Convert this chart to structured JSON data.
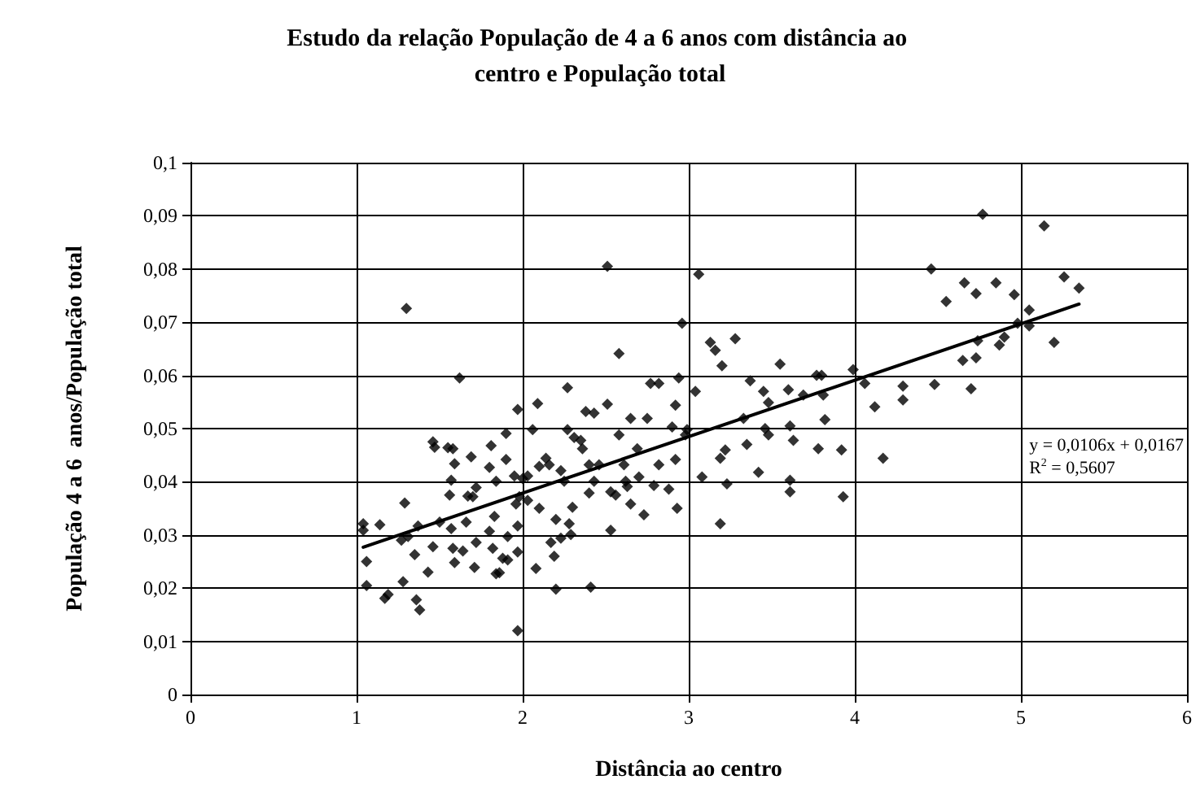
{
  "chart_data": {
    "type": "scatter",
    "title": "Estudo da relação População de 4 a 6 anos com distância ao centro e População total",
    "xlabel": "Distância ao centro",
    "ylabel": "População 4 a 6  anos/População total",
    "marker": "diamond",
    "grid": true,
    "xlim": [
      0,
      6
    ],
    "xticks": [
      0,
      1,
      2,
      3,
      4,
      5,
      6
    ],
    "ylim": [
      0,
      0.1
    ],
    "yticks": [
      0,
      {
        "value": 0.01,
        "label": "0,01"
      },
      {
        "value": 0.02,
        "label": "0,02"
      },
      {
        "value": 0.03,
        "label": "0,03"
      },
      {
        "value": 0.04,
        "label": "0,04"
      },
      {
        "value": 0.05,
        "label": "0,05"
      },
      {
        "value": 0.06,
        "label": "0,06"
      },
      {
        "value": 0.07,
        "label": "0,07"
      },
      {
        "value": 0.08,
        "label": "0,08"
      },
      {
        "value": 0.09,
        "label": "0,09"
      },
      {
        "value": 0.1,
        "label": "0,1"
      }
    ],
    "annotations": [
      "y = 0,0106x + 0,0167",
      "R$^{2}$ = 0,5607"
    ],
    "series": [
      {
        "color": "#000000",
        "x": [
          1.3,
          2.51,
          1.62,
          2.58,
          1.04,
          1.04,
          1.14,
          1.06,
          1.06,
          1.17,
          1.19,
          1.28,
          1.29,
          1.27,
          1.31,
          1.35,
          1.36,
          1.38,
          1.43,
          1.37,
          1.46,
          1.46,
          1.47,
          1.5,
          1.55,
          1.58,
          1.59,
          1.57,
          1.56,
          1.57,
          1.58,
          1.59,
          1.64,
          1.66,
          1.67,
          1.69,
          1.7,
          1.72,
          1.72,
          1.71,
          1.8,
          1.8,
          1.81,
          1.82,
          1.83,
          1.84,
          1.84,
          1.86,
          1.88,
          1.9,
          1.9,
          1.91,
          1.91,
          1.95,
          1.96,
          1.97,
          1.97,
          1.97,
          1.97,
          1.98,
          2.0,
          2.03,
          2.03,
          2.06,
          2.08,
          2.09,
          2.1,
          2.1,
          2.14,
          2.16,
          2.17,
          2.19,
          2.2,
          2.2,
          2.23,
          2.23,
          2.25,
          2.27,
          2.27,
          2.28,
          2.29,
          2.3,
          2.31,
          2.35,
          2.36,
          2.38,
          2.4,
          2.4,
          2.41,
          2.43,
          2.43,
          2.46,
          2.51,
          2.53,
          2.53,
          2.56,
          2.58,
          2.61,
          2.62,
          2.63,
          2.65,
          2.65,
          2.69,
          2.7,
          2.73,
          2.75,
          2.77,
          2.82,
          2.79,
          2.82,
          2.88,
          2.9,
          2.92,
          2.92,
          2.93,
          2.94,
          3.06,
          2.96,
          3.04,
          2.99,
          2.98,
          3.08,
          3.13,
          3.16,
          3.2,
          3.28,
          3.19,
          3.22,
          3.23,
          3.19,
          3.33,
          3.35,
          3.37,
          3.42,
          3.45,
          3.46,
          3.48,
          3.48,
          3.55,
          3.6,
          3.61,
          3.63,
          3.61,
          3.61,
          3.69,
          3.77,
          3.8,
          3.81,
          3.82,
          3.78,
          3.92,
          3.93,
          3.99,
          4.06,
          4.12,
          4.17,
          4.29,
          4.29,
          4.46,
          4.48,
          4.55,
          4.66,
          4.65,
          4.7,
          4.73,
          4.73,
          4.74,
          4.85,
          4.87,
          4.9,
          4.96,
          5.05,
          5.05,
          4.98,
          5.2,
          5.26,
          5.35,
          4.77,
          5.14
        ],
        "values": [
          0.0726,
          0.0805,
          0.0595,
          0.0641,
          0.0321,
          0.0309,
          0.0319,
          0.025,
          0.0205,
          0.0181,
          0.0188,
          0.0212,
          0.036,
          0.029,
          0.0297,
          0.0263,
          0.0178,
          0.0159,
          0.023,
          0.0317,
          0.0278,
          0.0475,
          0.0465,
          0.0324,
          0.0464,
          0.0462,
          0.0434,
          0.0403,
          0.0375,
          0.0312,
          0.0275,
          0.0248,
          0.027,
          0.0324,
          0.0373,
          0.0447,
          0.0372,
          0.0389,
          0.0286,
          0.0239,
          0.0307,
          0.0427,
          0.0468,
          0.0275,
          0.0335,
          0.0401,
          0.0227,
          0.0229,
          0.0256,
          0.0442,
          0.0491,
          0.0297,
          0.0253,
          0.0411,
          0.0358,
          0.0536,
          0.0268,
          0.0317,
          0.012,
          0.0372,
          0.0406,
          0.0411,
          0.0365,
          0.0498,
          0.0237,
          0.0547,
          0.035,
          0.0429,
          0.0444,
          0.0432,
          0.0286,
          0.026,
          0.0198,
          0.0329,
          0.0294,
          0.0421,
          0.0401,
          0.0498,
          0.0577,
          0.0321,
          0.0301,
          0.0352,
          0.0483,
          0.0478,
          0.0462,
          0.0532,
          0.0379,
          0.0432,
          0.0202,
          0.0529,
          0.0401,
          0.0432,
          0.0546,
          0.0309,
          0.0381,
          0.0375,
          0.0488,
          0.0432,
          0.0401,
          0.0391,
          0.0519,
          0.0358,
          0.0462,
          0.0409,
          0.0338,
          0.0519,
          0.0585,
          0.0585,
          0.0393,
          0.0432,
          0.0386,
          0.0503,
          0.0544,
          0.0442,
          0.035,
          0.0595,
          0.079,
          0.0698,
          0.057,
          0.0498,
          0.0488,
          0.0409,
          0.0662,
          0.0647,
          0.0618,
          0.0669,
          0.0444,
          0.046,
          0.0396,
          0.0321,
          0.0519,
          0.047,
          0.059,
          0.0418,
          0.057,
          0.05,
          0.0488,
          0.0549,
          0.0621,
          0.0573,
          0.0505,
          0.0478,
          0.0403,
          0.0381,
          0.0563,
          0.06,
          0.06,
          0.0563,
          0.0517,
          0.0462,
          0.046,
          0.0372,
          0.0611,
          0.0585,
          0.0541,
          0.0444,
          0.058,
          0.0554,
          0.08,
          0.0583,
          0.0739,
          0.0774,
          0.0628,
          0.0575,
          0.0633,
          0.0754,
          0.0665,
          0.0774,
          0.0657,
          0.0672,
          0.0752,
          0.0723,
          0.0693,
          0.0698,
          0.0662,
          0.0785,
          0.0764,
          0.0903,
          0.0881
        ]
      },
      {
        "type": "line",
        "color": "#000000",
        "line_style": "solid",
        "marker": "none",
        "x": [
          1.04,
          5.35
        ],
        "values": [
          0.0277,
          0.0734
        ]
      }
    ]
  }
}
